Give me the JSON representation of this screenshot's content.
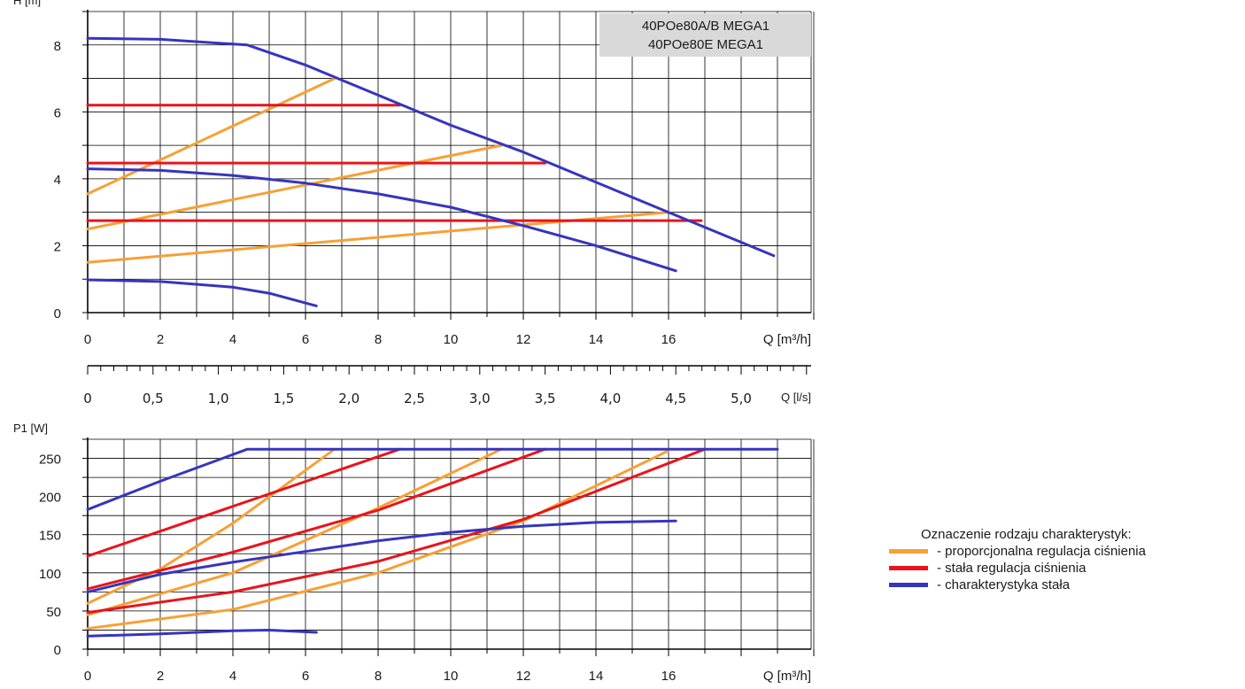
{
  "colors": {
    "proportional": "#F7A035",
    "constant": "#E8141B",
    "fixed": "#3535BE",
    "grid": "#000000",
    "model_box": "#D9D9D9"
  },
  "model_box": {
    "line1": "40POe80A/B MEGA1",
    "line2": "40POe80E MEGA1"
  },
  "legend": {
    "title": "Oznaczenie rodzaju charakterystyk:",
    "items": [
      {
        "label": "- proporcjonalna regulacja ciśnienia",
        "color": "#F7A035"
      },
      {
        "label": "- stała regulacja ciśnienia",
        "color": "#E8141B"
      },
      {
        "label": "- charakterystyka stała",
        "color": "#3535BE"
      }
    ]
  },
  "chart_data": [
    {
      "type": "line",
      "ylabel": "H [m]",
      "xlabel": "Q [m³/h]",
      "xlim": [
        0,
        20
      ],
      "ylim": [
        0,
        9
      ],
      "xticks": [
        "0",
        "2",
        "4",
        "6",
        "8",
        "10",
        "12",
        "14",
        "16"
      ],
      "yticks": [
        "0",
        "2",
        "4",
        "6",
        "8"
      ],
      "grid": true,
      "series": [
        {
          "kind": "fixed",
          "x": [
            0,
            2,
            4.4,
            6,
            8,
            10,
            12,
            14,
            16,
            18.9
          ],
          "y": [
            8.2,
            8.17,
            8.0,
            7.4,
            6.5,
            5.6,
            4.8,
            3.9,
            3.0,
            1.7
          ]
        },
        {
          "kind": "fixed",
          "x": [
            0,
            2,
            4,
            6,
            8,
            10,
            12,
            14,
            16.2
          ],
          "y": [
            4.3,
            4.25,
            4.1,
            3.87,
            3.55,
            3.15,
            2.6,
            2.0,
            1.25
          ]
        },
        {
          "kind": "fixed",
          "x": [
            0,
            2,
            4,
            5,
            6.3
          ],
          "y": [
            0.98,
            0.93,
            0.76,
            0.58,
            0.2
          ]
        },
        {
          "kind": "constant",
          "x": [
            0,
            8.6
          ],
          "y": [
            6.2,
            6.2
          ]
        },
        {
          "kind": "constant",
          "x": [
            0,
            12.6
          ],
          "y": [
            4.47,
            4.47
          ]
        },
        {
          "kind": "constant",
          "x": [
            0,
            16.9
          ],
          "y": [
            2.75,
            2.75
          ]
        },
        {
          "kind": "proportional",
          "x": [
            0,
            6.8
          ],
          "y": [
            3.55,
            7.0
          ]
        },
        {
          "kind": "proportional",
          "x": [
            0,
            11.4
          ],
          "y": [
            2.5,
            5.0
          ]
        },
        {
          "kind": "proportional",
          "x": [
            0,
            16
          ],
          "y": [
            1.5,
            3.0
          ]
        }
      ]
    },
    {
      "type": "axis",
      "xlabel": "Q [l/s]",
      "xlim": [
        0,
        5.6
      ],
      "xticks": [
        "0",
        "0,5",
        "1,0",
        "1,5",
        "2,0",
        "2,5",
        "3,0",
        "3,5",
        "4,0",
        "4,5",
        "5,0"
      ]
    },
    {
      "type": "line",
      "ylabel": "P1 [W]",
      "xlabel": "Q [m³/h]",
      "xlim": [
        0,
        20
      ],
      "ylim": [
        0,
        275
      ],
      "xticks": [
        "0",
        "2",
        "4",
        "6",
        "8",
        "10",
        "12",
        "14",
        "16"
      ],
      "yticks": [
        "0",
        "50",
        "100",
        "150",
        "200",
        "250"
      ],
      "grid": true,
      "series": [
        {
          "kind": "fixed",
          "x": [
            0,
            2,
            4.4,
            19
          ],
          "y": [
            183,
            220,
            262,
            262
          ]
        },
        {
          "kind": "fixed",
          "x": [
            0,
            2,
            4,
            6,
            8,
            10,
            12,
            14,
            16.2
          ],
          "y": [
            75,
            98,
            114,
            128,
            142,
            153,
            161,
            166,
            168
          ]
        },
        {
          "kind": "fixed",
          "x": [
            0,
            2,
            4,
            5,
            6.3
          ],
          "y": [
            17,
            20,
            24,
            25,
            22
          ]
        },
        {
          "kind": "constant",
          "x": [
            0,
            8.6
          ],
          "y": [
            122,
            262
          ]
        },
        {
          "kind": "constant",
          "x": [
            0,
            4,
            8,
            12.6
          ],
          "y": [
            79,
            127,
            182,
            262
          ]
        },
        {
          "kind": "constant",
          "x": [
            0,
            4,
            8,
            12,
            17
          ],
          "y": [
            48,
            75,
            115,
            170,
            262
          ]
        },
        {
          "kind": "proportional",
          "x": [
            0,
            2,
            4,
            6.8
          ],
          "y": [
            60,
            105,
            165,
            262
          ]
        },
        {
          "kind": "proportional",
          "x": [
            0,
            4,
            8,
            11.4
          ],
          "y": [
            45,
            100,
            185,
            262
          ]
        },
        {
          "kind": "proportional",
          "x": [
            0,
            4,
            8,
            12,
            16
          ],
          "y": [
            27,
            52,
            100,
            168,
            260
          ]
        }
      ]
    }
  ]
}
